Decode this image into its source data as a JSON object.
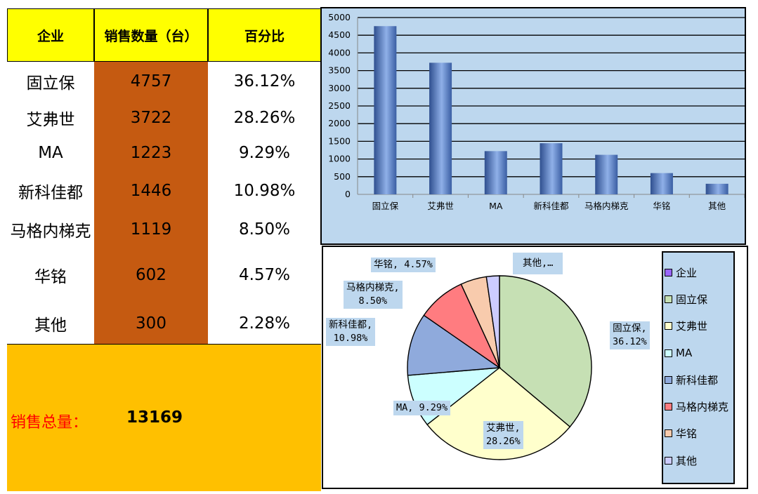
{
  "table": {
    "headers": [
      "企业",
      "销售数量（台）",
      "百分比"
    ],
    "rows": [
      {
        "company": "固立保",
        "quantity": "4757",
        "percent": "36.12%"
      },
      {
        "company": "艾弗世",
        "quantity": "3722",
        "percent": "28.26%"
      },
      {
        "company": "MA",
        "quantity": "1223",
        "percent": "9.29%"
      },
      {
        "company": "新科佳都",
        "quantity": "1446",
        "percent": "10.98%"
      },
      {
        "company": "马格内梯克",
        "quantity": "1119",
        "percent": "8.50%"
      },
      {
        "company": "华铭",
        "quantity": "602",
        "percent": "4.57%"
      },
      {
        "company": "其他",
        "quantity": "300",
        "percent": "2.28%"
      }
    ],
    "total_label": "销售总量：",
    "total_value": "13169"
  },
  "colors": {
    "header_bg": "#ffff00",
    "quantity_col_bg": "#c55a11",
    "total_bg": "#ffc000",
    "total_label": "#ff0000",
    "chart_bg": "#bdd7ee",
    "bar": "#4f74b8"
  },
  "chart_data": [
    {
      "type": "bar",
      "categories": [
        "固立保",
        "艾弗世",
        "MA",
        "新科佳都",
        "马格内梯克",
        "华铭",
        "其他"
      ],
      "values": [
        4757,
        3722,
        1223,
        1446,
        1119,
        602,
        300
      ],
      "ylim": [
        0,
        5000
      ],
      "yticks": [
        "0",
        "500",
        "1000",
        "1500",
        "2000",
        "2500",
        "3000",
        "3500",
        "4000",
        "4500",
        "5000"
      ],
      "grid": true
    },
    {
      "type": "pie",
      "slices": [
        {
          "name": "固立保",
          "value": 36.12,
          "label": [
            "固立保,",
            "36.12%"
          ],
          "color": "#c6e0b4"
        },
        {
          "name": "艾弗世",
          "value": 28.26,
          "label": [
            "艾弗世,",
            "28.26%"
          ],
          "color": "#ffffcc"
        },
        {
          "name": "MA",
          "value": 9.29,
          "label": [
            "MA, 9.29%"
          ],
          "color": "#ccffff"
        },
        {
          "name": "新科佳都",
          "value": 10.98,
          "label": [
            "新科佳都,",
            "10.98%"
          ],
          "color": "#8faadc"
        },
        {
          "name": "马格内梯克",
          "value": 8.5,
          "label": [
            "马格内梯克,",
            "8.50%"
          ],
          "color": "#ff7c80"
        },
        {
          "name": "华铭",
          "value": 4.57,
          "label": [
            "华铭, 4.57%"
          ],
          "color": "#f8cbad"
        },
        {
          "name": "其他",
          "value": 2.28,
          "label": [
            "其他,…"
          ],
          "color": "#ccccff"
        }
      ],
      "legend": {
        "placement": "right",
        "entries": [
          {
            "name": "企业",
            "color": "#9966ff"
          },
          {
            "name": "固立保",
            "color": "#c6e0b4"
          },
          {
            "name": "艾弗世",
            "color": "#ffffcc"
          },
          {
            "name": "MA",
            "color": "#ccffff"
          },
          {
            "name": "新科佳都",
            "color": "#8faadc"
          },
          {
            "name": "马格内梯克",
            "color": "#ff7c80"
          },
          {
            "name": "华铭",
            "color": "#f8cbad"
          },
          {
            "name": "其他",
            "color": "#ccccff"
          }
        ]
      }
    }
  ]
}
